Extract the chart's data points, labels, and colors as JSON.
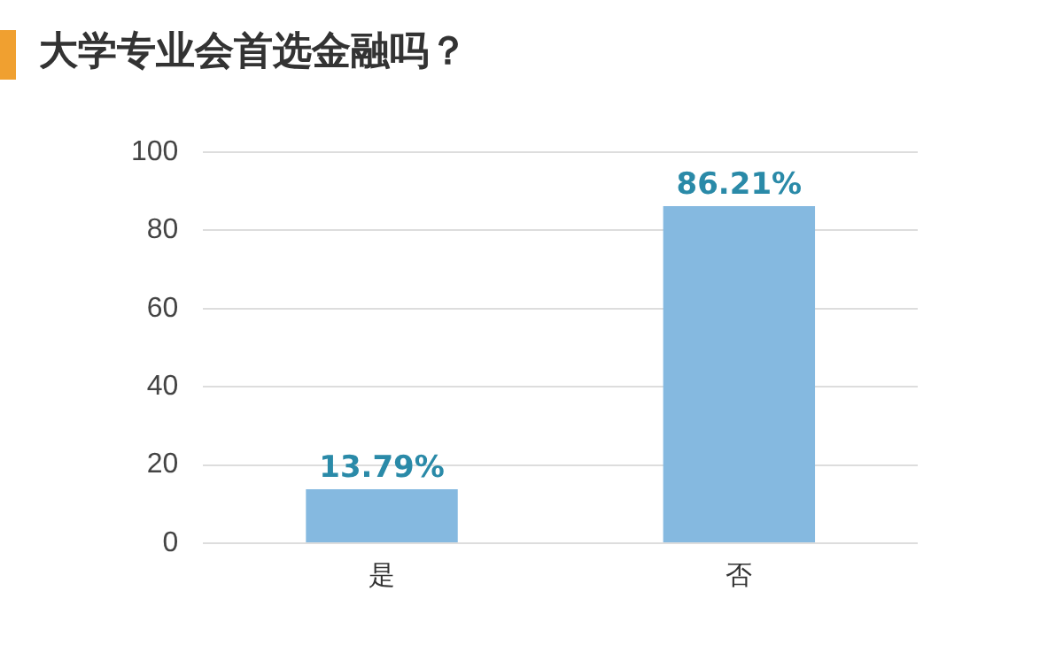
{
  "chart_data": {
    "type": "bar",
    "title": "大学专业会首选金融吗？",
    "categories": [
      "是",
      "否"
    ],
    "values": [
      13.79,
      86.21
    ],
    "value_labels": [
      "13.79%",
      "86.21%"
    ],
    "color": "#85b9e0",
    "ylim": [
      0,
      100
    ],
    "yticks": [
      0,
      20,
      40,
      60,
      80,
      100
    ],
    "grid": "y",
    "legend": false
  }
}
